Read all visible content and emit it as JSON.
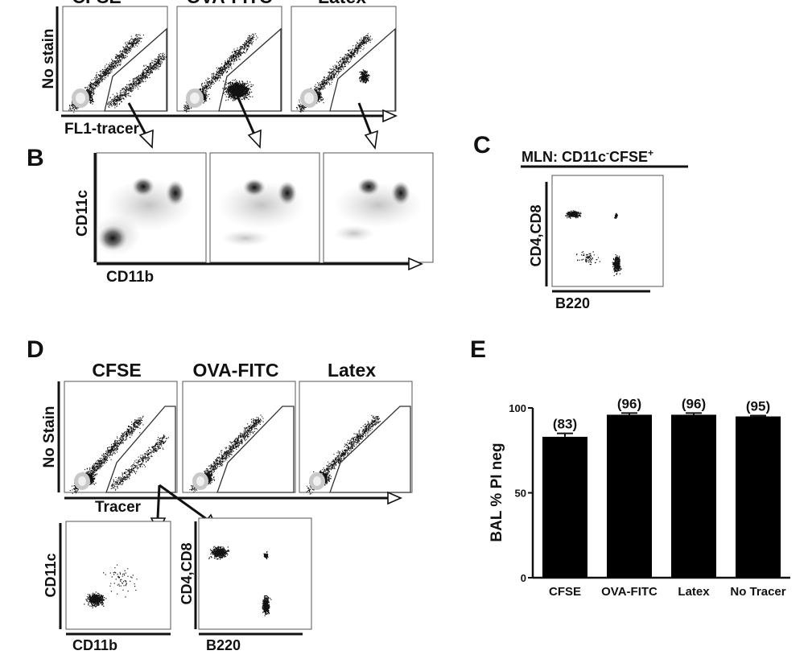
{
  "panel_letters": {
    "b": "B",
    "c": "C",
    "d": "D",
    "e": "E"
  },
  "panel_a": {
    "columns": [
      "CFSE",
      "OVA-FITC",
      "Latex"
    ],
    "row_label": "No stain",
    "x_label": "FL1-tracer"
  },
  "panel_b": {
    "x_label": "CD11b",
    "y_label": "CD11c"
  },
  "panel_c": {
    "title_prefix": "MLN: CD11c",
    "title_sup1": "-",
    "title_mid": "CFSE",
    "title_sup2": "+",
    "x_label": "B220",
    "y_label": "CD4,CD8"
  },
  "panel_d": {
    "columns": [
      "CFSE",
      "OVA-FITC",
      "Latex"
    ],
    "row_label": "No Stain",
    "x_label": "Tracer",
    "sub1": {
      "x_label": "CD11b",
      "y_label": "CD11c"
    },
    "sub2": {
      "x_label": "B220",
      "y_label": "CD4,CD8"
    }
  },
  "chart_data": {
    "type": "bar",
    "categories": [
      "CFSE",
      "OVA-FITC",
      "Latex",
      "No Tracer"
    ],
    "values": [
      83,
      96,
      96,
      95
    ],
    "errors": [
      2,
      1,
      1,
      0.5
    ],
    "value_labels": [
      "(83)",
      "(96)",
      "(96)",
      "(95)"
    ],
    "ylabel": "BAL % PI neg",
    "ylim": [
      0,
      100
    ],
    "yticks": [
      0,
      50,
      100
    ],
    "bar_color": "#000000"
  }
}
